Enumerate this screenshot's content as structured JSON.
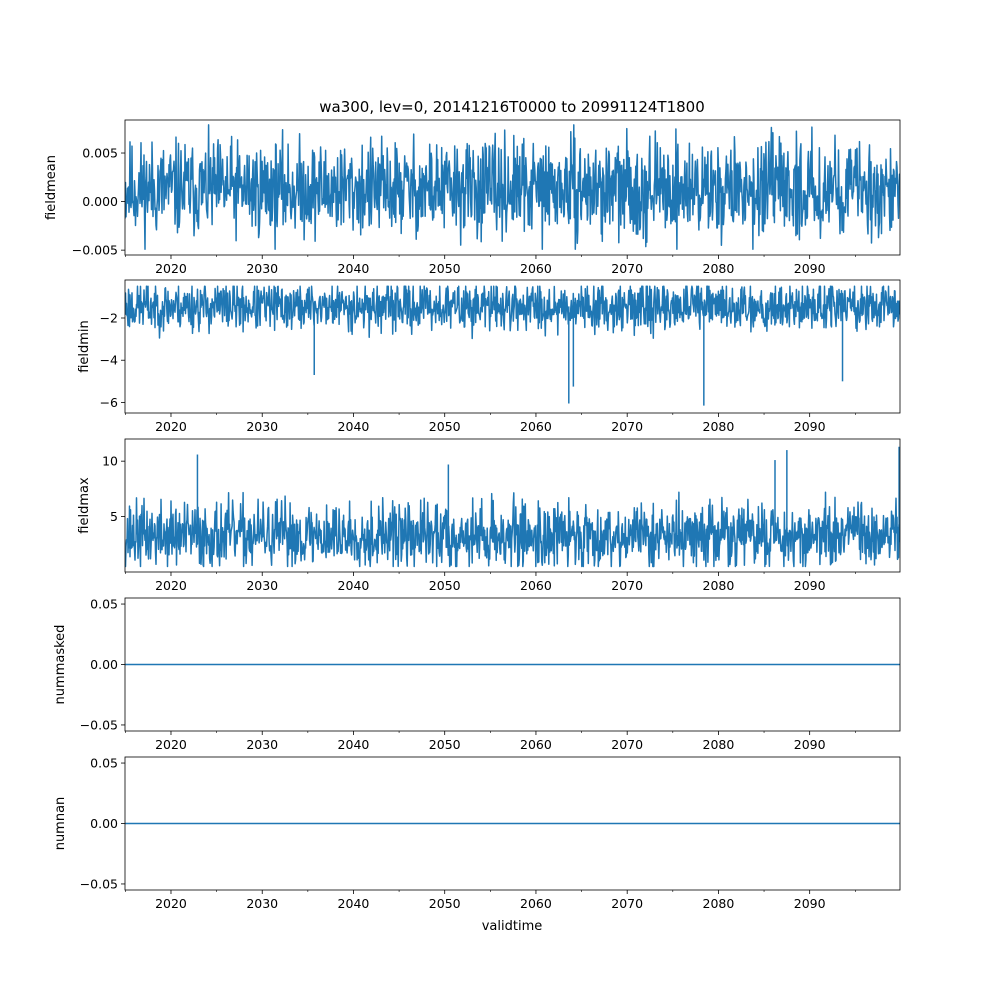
{
  "figure": {
    "title": "wa300, lev=0, 20141216T0000 to 20991124T1800",
    "xlabel": "validtime",
    "line_color": "#1f77b4"
  },
  "chart_data": [
    {
      "type": "line",
      "ylabel": "fieldmean",
      "xlim": [
        2014.96,
        2099.9
      ],
      "ylim": [
        -0.0055,
        0.0084
      ],
      "xticks": [
        2020,
        2030,
        2040,
        2050,
        2060,
        2070,
        2080,
        2090
      ],
      "yticks": [
        -0.005,
        0.0,
        0.005
      ],
      "ytick_labels": [
        "−0.005",
        "0.000",
        "0.005"
      ],
      "band": {
        "center": 0.0013,
        "spread": 0.0042,
        "min": -0.0049,
        "max": 0.0079,
        "seed": 11
      }
    },
    {
      "type": "line",
      "ylabel": "fieldmin",
      "xlim": [
        2014.96,
        2099.9
      ],
      "ylim": [
        -6.5,
        -0.2
      ],
      "xticks": [
        2020,
        2030,
        2040,
        2050,
        2060,
        2070,
        2080,
        2090
      ],
      "yticks": [
        -6,
        -4,
        -2
      ],
      "ytick_labels": [
        "−6",
        "−4",
        "−2"
      ],
      "band": {
        "center": -1.45,
        "spread": 1.0,
        "min": -6.15,
        "max": -0.5,
        "seed": 23
      },
      "spikes": [
        {
          "x": 2063.6,
          "y": -6.05
        },
        {
          "x": 2064.1,
          "y": -5.25
        },
        {
          "x": 2078.4,
          "y": -6.15
        },
        {
          "x": 2093.6,
          "y": -5.0
        },
        {
          "x": 2035.7,
          "y": -4.7
        }
      ]
    },
    {
      "type": "line",
      "ylabel": "fieldmax",
      "xlim": [
        2014.96,
        2099.9
      ],
      "ylim": [
        0.0,
        12.0
      ],
      "xticks": [
        2020,
        2030,
        2040,
        2050,
        2060,
        2070,
        2080,
        2090
      ],
      "yticks": [
        5,
        10
      ],
      "ytick_labels": [
        "5",
        "10"
      ],
      "band": {
        "center": 3.3,
        "spread": 2.6,
        "min": 0.5,
        "max": 11.3,
        "seed": 37
      },
      "spikes": [
        {
          "x": 2022.9,
          "y": 10.6
        },
        {
          "x": 2087.5,
          "y": 11.0
        },
        {
          "x": 2099.8,
          "y": 11.3
        },
        {
          "x": 2050.4,
          "y": 9.7
        },
        {
          "x": 2086.2,
          "y": 10.1
        }
      ]
    },
    {
      "type": "line",
      "ylabel": "nummasked",
      "xlim": [
        2014.96,
        2099.9
      ],
      "ylim": [
        -0.055,
        0.055
      ],
      "xticks": [
        2020,
        2030,
        2040,
        2050,
        2060,
        2070,
        2080,
        2090
      ],
      "yticks": [
        -0.05,
        0.0,
        0.05
      ],
      "ytick_labels": [
        "−0.05",
        "0.00",
        "0.05"
      ],
      "x": [
        2014.96,
        2099.9
      ],
      "y": [
        0,
        0
      ]
    },
    {
      "type": "line",
      "ylabel": "numnan",
      "xlim": [
        2014.96,
        2099.9
      ],
      "ylim": [
        -0.055,
        0.055
      ],
      "xticks": [
        2020,
        2030,
        2040,
        2050,
        2060,
        2070,
        2080,
        2090
      ],
      "yticks": [
        -0.05,
        0.0,
        0.05
      ],
      "ytick_labels": [
        "−0.05",
        "0.00",
        "0.05"
      ],
      "x": [
        2014.96,
        2099.9
      ],
      "y": [
        0,
        0
      ]
    }
  ]
}
